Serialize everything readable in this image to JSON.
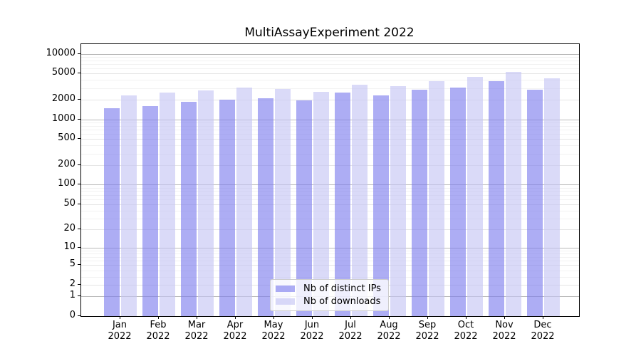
{
  "window": {
    "background": "#ffffff"
  },
  "chart_data": {
    "type": "bar",
    "title": "MultiAssayExperiment 2022",
    "xlabel": "",
    "ylabel": "",
    "y_scale": "log1p",
    "ylim": [
      0,
      14080
    ],
    "y_ticks": [
      0,
      1,
      2,
      5,
      10,
      20,
      50,
      100,
      200,
      500,
      1000,
      2000,
      5000,
      10000
    ],
    "grid": "on",
    "legend_position": "lower center",
    "categories": [
      "Jan 2022",
      "Feb 2022",
      "Mar 2022",
      "Apr 2022",
      "May 2022",
      "Jun 2022",
      "Jul 2022",
      "Aug 2022",
      "Sep 2022",
      "Oct 2022",
      "Nov 2022",
      "Dec 2022"
    ],
    "series": [
      {
        "name": "Nb of distinct IPs",
        "color": "rgba(122,122,238,0.62)",
        "values": [
          1480,
          1610,
          1860,
          1990,
          2110,
          1950,
          2560,
          2350,
          2840,
          3090,
          3880,
          2840
        ]
      },
      {
        "name": "Nb of downloads",
        "color": "rgba(196,196,243,0.62)",
        "values": [
          2340,
          2600,
          2790,
          3050,
          2910,
          2640,
          3420,
          3220,
          3860,
          4450,
          5350,
          4250
        ]
      }
    ]
  },
  "colors": {
    "axis": "#000000",
    "grid_decade": "#b8b8b8",
    "grid_major": "#e4e4e4",
    "grid_minor": "#f2f2f2",
    "legend_border": "#cccccc"
  }
}
